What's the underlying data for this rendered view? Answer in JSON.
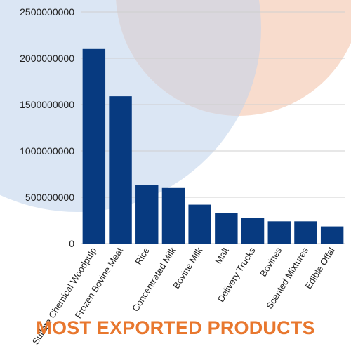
{
  "chart_data": {
    "type": "bar",
    "title": "MOST EXPORTED PRODUCTS",
    "categories": [
      "Sulfate Chemical Woodpulp",
      "Frozen Bovine Meat",
      "Rice",
      "Concentrated Milk",
      "Bovine Milk",
      "Malt",
      "Delivery Trucks",
      "Bovines",
      "Scented Mixtures",
      "Edible Offal"
    ],
    "values": [
      2100000000,
      1590000000,
      630000000,
      600000000,
      420000000,
      330000000,
      280000000,
      240000000,
      240000000,
      185000000
    ],
    "yticks": [
      "0",
      "500000000",
      "1000000000",
      "1500000000",
      "2000000000",
      "2500000000"
    ],
    "ylim": [
      0,
      2500000000
    ],
    "xlabel": "",
    "ylabel": "",
    "grid": true
  },
  "colors": {
    "bar": "#073a80",
    "title": "#e8772e",
    "circle_blue": "#dbe6f4",
    "circle_peach": "#f8dccd",
    "circle_overlap": "#dad7de",
    "grid": "#cfcfcf"
  }
}
